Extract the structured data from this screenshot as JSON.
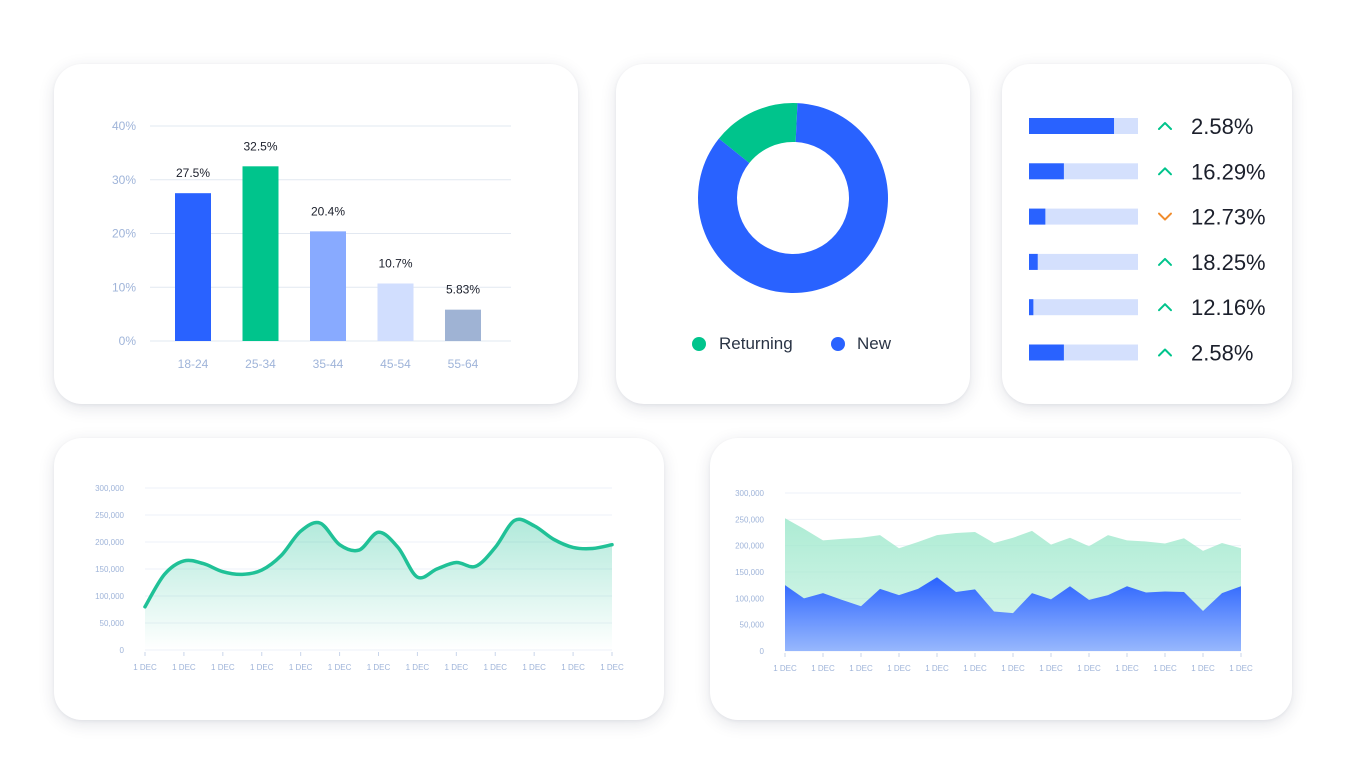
{
  "colors": {
    "blue": "#2962ff",
    "green": "#00c48c",
    "light_blue": "#88aaff",
    "pale_blue": "#d1defe",
    "slate": "#9fb3d4",
    "track": "#d4e0fd",
    "up": "#00c48c",
    "down": "#f08c2d",
    "axis_text": "#9fb4d9"
  },
  "chart_data": [
    {
      "type": "bar",
      "categories": [
        "18-24",
        "25-34",
        "35-44",
        "45-54",
        "55-64"
      ],
      "values": [
        27.5,
        32.5,
        20.4,
        10.7,
        5.83
      ],
      "data_labels": [
        "27.5%",
        "32.5%",
        "20.4%",
        "10.7%",
        "5.83%"
      ],
      "bar_colors": [
        "#2962ff",
        "#00c48c",
        "#88aaff",
        "#d1defe",
        "#9fb3d4"
      ],
      "yticks": [
        "40%",
        "30%",
        "20%",
        "10%",
        "0%"
      ],
      "ylim": [
        0,
        40
      ],
      "grid": true
    },
    {
      "type": "pie",
      "donut": true,
      "labels": [
        "Returning",
        "New"
      ],
      "values": [
        15,
        85
      ],
      "colors": [
        "#00c48c",
        "#2962ff"
      ],
      "legend_position": "bottom"
    },
    {
      "type": "table",
      "rows": [
        {
          "fill": 0.78,
          "direction": "up",
          "value": "2.58%"
        },
        {
          "fill": 0.32,
          "direction": "up",
          "value": "16.29%"
        },
        {
          "fill": 0.15,
          "direction": "down",
          "value": "12.73%"
        },
        {
          "fill": 0.08,
          "direction": "up",
          "value": "18.25%"
        },
        {
          "fill": 0.04,
          "direction": "up",
          "value": "12.16%"
        },
        {
          "fill": 0.32,
          "direction": "up",
          "value": "2.58%"
        }
      ]
    },
    {
      "type": "line",
      "fill": "gradient",
      "yticks": [
        "300,000",
        "250,000",
        "200,000",
        "150,000",
        "100,000",
        "50,000",
        "0"
      ],
      "ylim": [
        0,
        300000
      ],
      "xticks": [
        "1 DEC",
        "1 DEC",
        "1 DEC",
        "1 DEC",
        "1 DEC",
        "1 DEC",
        "1 DEC",
        "1 DEC",
        "1 DEC",
        "1 DEC",
        "1 DEC",
        "1 DEC",
        "1 DEC"
      ],
      "x": [
        0,
        0.5,
        1,
        1.5,
        2,
        2.5,
        3,
        3.5,
        4,
        4.5,
        5,
        5.5,
        6,
        6.5,
        7,
        7.5,
        8,
        8.5,
        9,
        9.5,
        10,
        10.5,
        11,
        11.5,
        12
      ],
      "values": [
        80000,
        140000,
        165000,
        160000,
        145000,
        140000,
        148000,
        175000,
        220000,
        235000,
        195000,
        185000,
        218000,
        190000,
        135000,
        150000,
        162000,
        155000,
        190000,
        240000,
        230000,
        205000,
        190000,
        188000,
        195000
      ],
      "color": "#20c197"
    },
    {
      "type": "area",
      "yticks": [
        "300,000",
        "250,000",
        "200,000",
        "150,000",
        "100,000",
        "50,000",
        "0"
      ],
      "ylim": [
        0,
        300000
      ],
      "xticks": [
        "1 DEC",
        "1 DEC",
        "1 DEC",
        "1 DEC",
        "1 DEC",
        "1 DEC",
        "1 DEC",
        "1 DEC",
        "1 DEC",
        "1 DEC",
        "1 DEC",
        "1 DEC",
        "1 DEC"
      ],
      "x": [
        0,
        0.5,
        1,
        1.5,
        2,
        2.5,
        3,
        3.5,
        4,
        4.5,
        5,
        5.5,
        6,
        6.5,
        7,
        7.5,
        8,
        8.5,
        9,
        9.5,
        10,
        10.5,
        11,
        11.5,
        12
      ],
      "series": [
        {
          "values": [
            252000,
            232000,
            210000,
            213000,
            215000,
            220000,
            195000,
            207000,
            220000,
            224000,
            226000,
            205000,
            215000,
            228000,
            202000,
            215000,
            199000,
            220000,
            210000,
            208000,
            204000,
            214000,
            190000,
            205000,
            195000
          ],
          "color": "#9ee8cc"
        },
        {
          "values": [
            125000,
            100000,
            110000,
            97000,
            85000,
            118000,
            106000,
            118000,
            140000,
            112000,
            117000,
            75000,
            72000,
            110000,
            98000,
            123000,
            97000,
            106000,
            123000,
            111000,
            113000,
            112000,
            76000,
            110000,
            123000
          ],
          "color": "#2962ff"
        }
      ]
    }
  ],
  "legend": {
    "returning": "Returning",
    "new": "New"
  }
}
